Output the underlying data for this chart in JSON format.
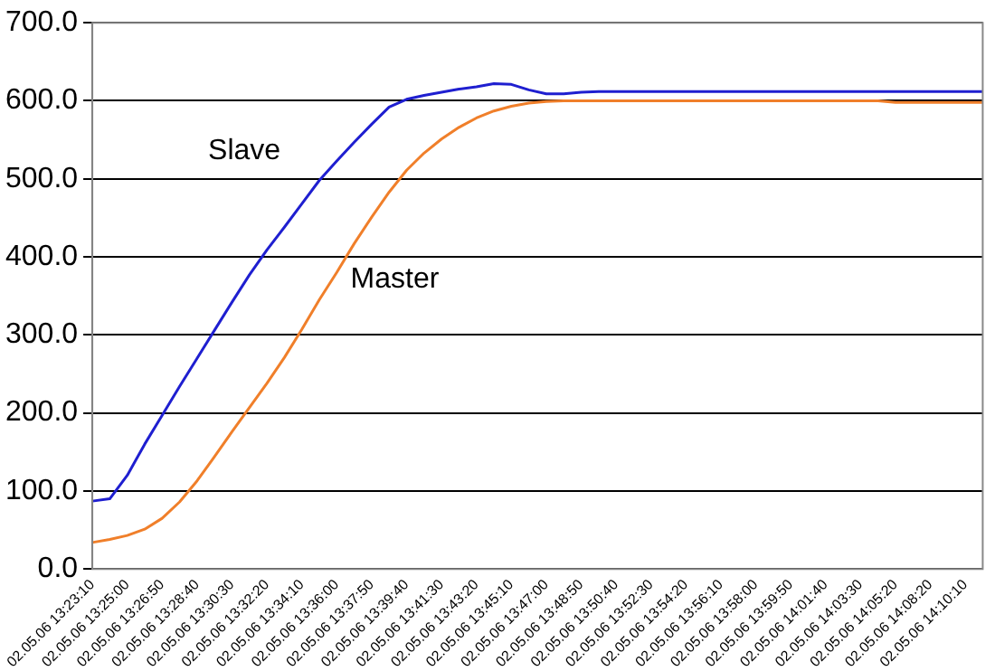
{
  "chart_data": {
    "type": "line",
    "categories": [
      "02.05.06 13:23:10",
      null,
      "02.05.06 13:25:00",
      null,
      "02.05.06 13:26:50",
      null,
      "02.05.06 13:28:40",
      null,
      "02.05.06 13:30:30",
      null,
      "02.05.06 13:32:20",
      null,
      "02.05.06 13:34:10",
      null,
      "02.05.06 13:36:00",
      null,
      "02.05.06 13:37:50",
      null,
      "02.05.06 13:39:40",
      null,
      "02.05.06 13:41:30",
      null,
      "02.05.06 13:43:20",
      null,
      "02.05.06 13:45:10",
      null,
      "02.05.06 13:47:00",
      null,
      "02.05.06 13:48:50",
      null,
      "02.05.06 13:50:40",
      null,
      "02.05.06 13:52:30",
      null,
      "02.05.06 13:54:20",
      null,
      "02.05.06 13:56:10",
      null,
      "02.05.06 13:58:00",
      null,
      "02.05.06 13:59:50",
      null,
      "02.05.06 14:01:40",
      null,
      "02.05.06 14:03:30",
      null,
      "02.05.06 14:05:20",
      null,
      "02.05.06 14:08:20",
      null,
      "02.05.06 14:10:10",
      null
    ],
    "series": [
      {
        "name": "Slave",
        "color": "#1f1fd0",
        "values": [
          87,
          90,
          120,
          160,
          197,
          234,
          270,
          306,
          342,
          377,
          409,
          438,
          468,
          498,
          523,
          547,
          570,
          592,
          602,
          607,
          611,
          615,
          618,
          622,
          621,
          614,
          609,
          609,
          611,
          612,
          612,
          612,
          612,
          612,
          612,
          612,
          612,
          612,
          612,
          612,
          612,
          612,
          612,
          612,
          612,
          612,
          612,
          612,
          612,
          612,
          612,
          612
        ]
      },
      {
        "name": "Master",
        "color": "#f07f2a",
        "values": [
          34,
          38,
          43,
          51,
          65,
          86,
          113,
          144,
          176,
          207,
          238,
          271,
          307,
          345,
          380,
          417,
          451,
          483,
          511,
          533,
          551,
          566,
          578,
          587,
          593,
          597,
          599,
          600,
          600,
          600,
          600,
          600,
          600,
          600,
          600,
          600,
          600,
          600,
          600,
          600,
          600,
          600,
          600,
          600,
          600,
          600,
          598,
          598,
          598,
          598,
          598,
          598
        ]
      }
    ],
    "ylim": [
      0,
      700
    ],
    "yticks": [
      {
        "value": 0,
        "label": "0.0"
      },
      {
        "value": 100,
        "label": "100.0"
      },
      {
        "value": 200,
        "label": "200.0"
      },
      {
        "value": 300,
        "label": "300.0"
      },
      {
        "value": 400,
        "label": "400.0"
      },
      {
        "value": 500,
        "label": "500.0"
      },
      {
        "value": 600,
        "label": "600.0"
      },
      {
        "value": 700,
        "label": "700.0"
      }
    ],
    "grid": "y",
    "legend": false,
    "marker": "none",
    "line_style": "solid"
  }
}
